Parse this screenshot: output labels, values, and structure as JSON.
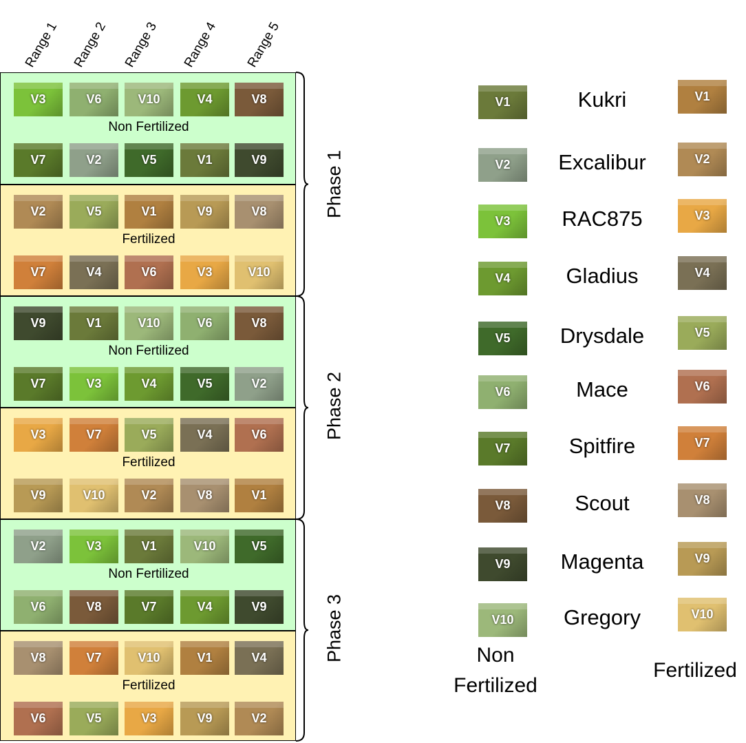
{
  "ranges": [
    "Range 1",
    "Range 2",
    "Range 3",
    "Range 4",
    "Range 5"
  ],
  "captions": {
    "non_fertilized": "Non Fertilized",
    "fertilized": "Fertilized"
  },
  "phases": [
    "Phase 1",
    "Phase 2",
    "Phase 3"
  ],
  "tile_colors": {
    "nf": {
      "V1": "#6b7a3a",
      "V2": "#8fa08a",
      "V3": "#7cc23a",
      "V4": "#6d9a30",
      "V5": "#3f6a2a",
      "V6": "#8fb070",
      "V7": "#5a7a2a",
      "V8": "#7a5a3a",
      "V9": "#3f4a2e",
      "V10": "#9cb87a"
    },
    "f": {
      "V1": "#b08040",
      "V2": "#b08a55",
      "V3": "#e8a845",
      "V4": "#7a7055",
      "V5": "#9aab5a",
      "V6": "#b07050",
      "V7": "#d0803a",
      "V8": "#a89070",
      "V9": "#b89a55",
      "V10": "#e0c070"
    }
  },
  "layout_rows": [
    {
      "type": "nf",
      "tiles": [
        "V3",
        "V6",
        "V10",
        "V4",
        "V8"
      ]
    },
    {
      "type": "nf",
      "tiles": [
        "V7",
        "V2",
        "V5",
        "V1",
        "V9"
      ]
    },
    {
      "type": "f",
      "tiles": [
        "V2",
        "V5",
        "V1",
        "V9",
        "V8"
      ]
    },
    {
      "type": "f",
      "tiles": [
        "V7",
        "V4",
        "V6",
        "V3",
        "V10"
      ]
    },
    {
      "type": "nf",
      "tiles": [
        "V9",
        "V1",
        "V10",
        "V6",
        "V8"
      ]
    },
    {
      "type": "nf",
      "tiles": [
        "V7",
        "V3",
        "V4",
        "V5",
        "V2"
      ]
    },
    {
      "type": "f",
      "tiles": [
        "V3",
        "V7",
        "V5",
        "V4",
        "V6"
      ]
    },
    {
      "type": "f",
      "tiles": [
        "V9",
        "V10",
        "V2",
        "V8",
        "V1"
      ]
    },
    {
      "type": "nf",
      "tiles": [
        "V2",
        "V3",
        "V1",
        "V10",
        "V5"
      ]
    },
    {
      "type": "nf",
      "tiles": [
        "V6",
        "V8",
        "V7",
        "V4",
        "V9"
      ]
    },
    {
      "type": "f",
      "tiles": [
        "V8",
        "V7",
        "V10",
        "V1",
        "V4"
      ]
    },
    {
      "type": "f",
      "tiles": [
        "V6",
        "V5",
        "V3",
        "V9",
        "V2"
      ]
    }
  ],
  "legend": [
    {
      "code": "V1",
      "name": "Kukri"
    },
    {
      "code": "V2",
      "name": "Excalibur"
    },
    {
      "code": "V3",
      "name": "RAC875"
    },
    {
      "code": "V4",
      "name": "Gladius"
    },
    {
      "code": "V5",
      "name": "Drysdale"
    },
    {
      "code": "V6",
      "name": "Mace"
    },
    {
      "code": "V7",
      "name": "Spitfire"
    },
    {
      "code": "V8",
      "name": "Scout"
    },
    {
      "code": "V9",
      "name": "Magenta"
    },
    {
      "code": "V10",
      "name": "Gregory"
    }
  ],
  "legend_footer": {
    "left": "Non Fertilized",
    "right": "Fertilized"
  }
}
